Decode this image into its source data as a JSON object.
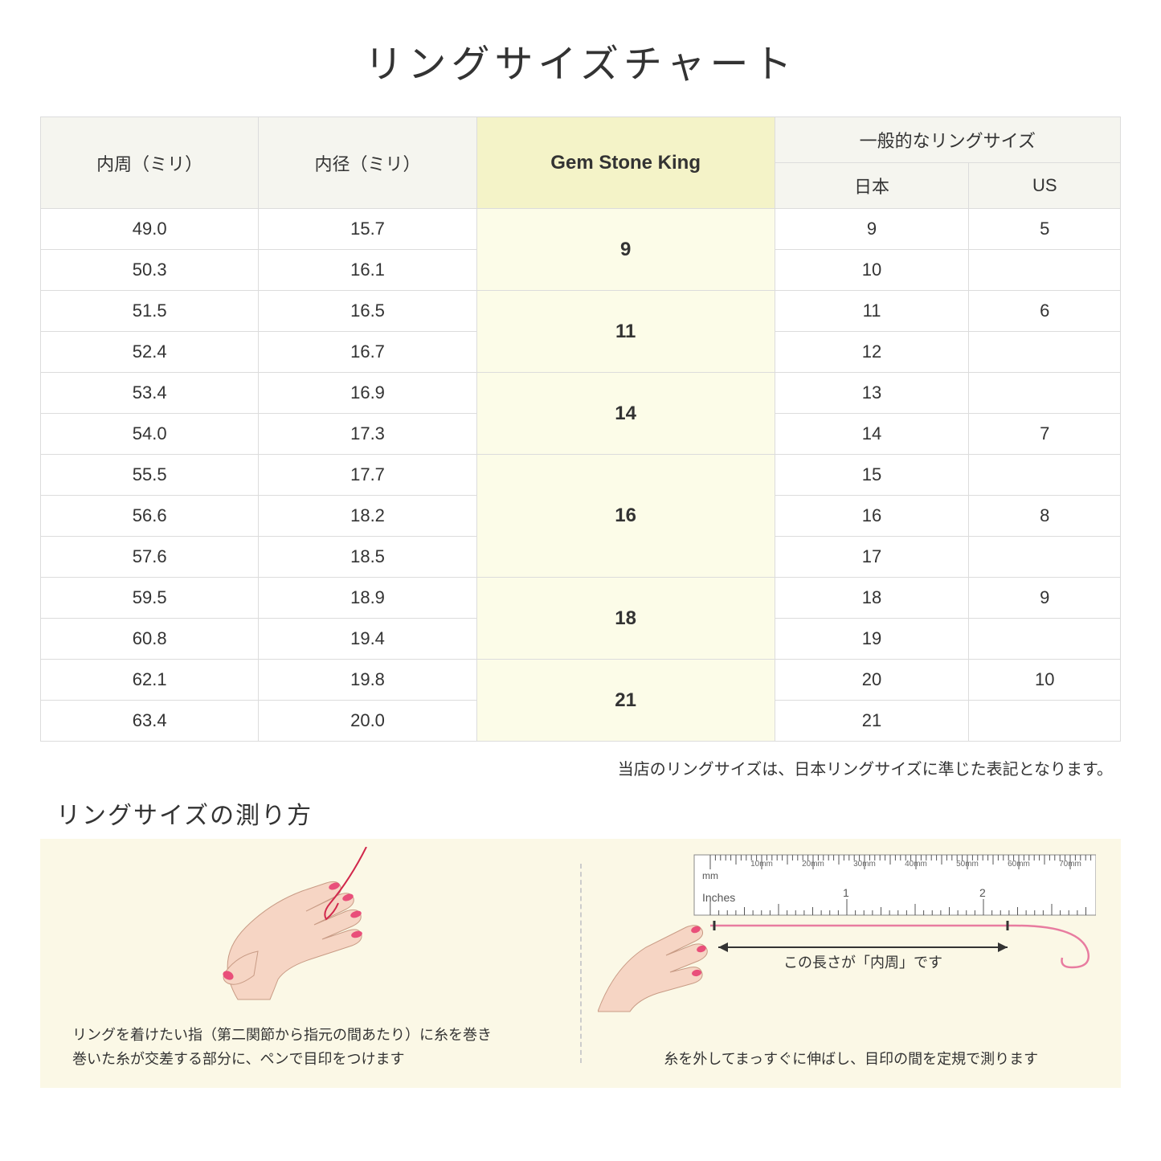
{
  "title": "リングサイズチャート",
  "table": {
    "headers": {
      "circumference": "内周（ミリ）",
      "diameter": "内径（ミリ）",
      "gem": "Gem Stone King",
      "general_group": "一般的なリングサイズ",
      "japan": "日本",
      "us": "US"
    },
    "header_bg": "#f5f5ef",
    "gem_header_bg": "#f4f3c8",
    "gem_cell_bg": "#fcfce8",
    "border_color": "#dcdcdc",
    "groups": [
      {
        "gem": "9",
        "rows": [
          {
            "circ": "49.0",
            "dia": "15.7",
            "jp": "9",
            "us": "5"
          },
          {
            "circ": "50.3",
            "dia": "16.1",
            "jp": "10",
            "us": ""
          }
        ]
      },
      {
        "gem": "11",
        "rows": [
          {
            "circ": "51.5",
            "dia": "16.5",
            "jp": "11",
            "us": "6"
          },
          {
            "circ": "52.4",
            "dia": "16.7",
            "jp": "12",
            "us": ""
          }
        ]
      },
      {
        "gem": "14",
        "rows": [
          {
            "circ": "53.4",
            "dia": "16.9",
            "jp": "13",
            "us": ""
          },
          {
            "circ": "54.0",
            "dia": "17.3",
            "jp": "14",
            "us": "7"
          }
        ]
      },
      {
        "gem": "16",
        "rows": [
          {
            "circ": "55.5",
            "dia": "17.7",
            "jp": "15",
            "us": ""
          },
          {
            "circ": "56.6",
            "dia": "18.2",
            "jp": "16",
            "us": "8"
          },
          {
            "circ": "57.6",
            "dia": "18.5",
            "jp": "17",
            "us": ""
          }
        ]
      },
      {
        "gem": "18",
        "rows": [
          {
            "circ": "59.5",
            "dia": "18.9",
            "jp": "18",
            "us": "9"
          },
          {
            "circ": "60.8",
            "dia": "19.4",
            "jp": "19",
            "us": ""
          }
        ]
      },
      {
        "gem": "21",
        "rows": [
          {
            "circ": "62.1",
            "dia": "19.8",
            "jp": "20",
            "us": "10"
          },
          {
            "circ": "63.4",
            "dia": "20.0",
            "jp": "21",
            "us": ""
          }
        ]
      }
    ]
  },
  "footnote": "当店のリングサイズは、日本リングサイズに準じた表記となります。",
  "howto": {
    "title": "リングサイズの測り方",
    "background": "#fbf8e6",
    "left_caption": "リングを着けたい指（第二関節から指元の間あたり）に糸を巻き\n巻いた糸が交差する部分に、ペンで目印をつけます",
    "right_caption": "糸を外してまっすぐに伸ばし、目印の間を定規で測ります",
    "ruler_label": "この長さが「内周」です",
    "ruler_marks": [
      "10mm",
      "20mm",
      "30mm",
      "40mm",
      "50mm",
      "60mm",
      "70mm"
    ],
    "ruler_unit_mm": "mm",
    "ruler_unit_in": "Inches",
    "ruler_inch_1": "1",
    "ruler_inch_2": "2",
    "skin_color": "#f6d5c4",
    "nail_color": "#e94f7a",
    "thread_color": "#d1274b"
  }
}
